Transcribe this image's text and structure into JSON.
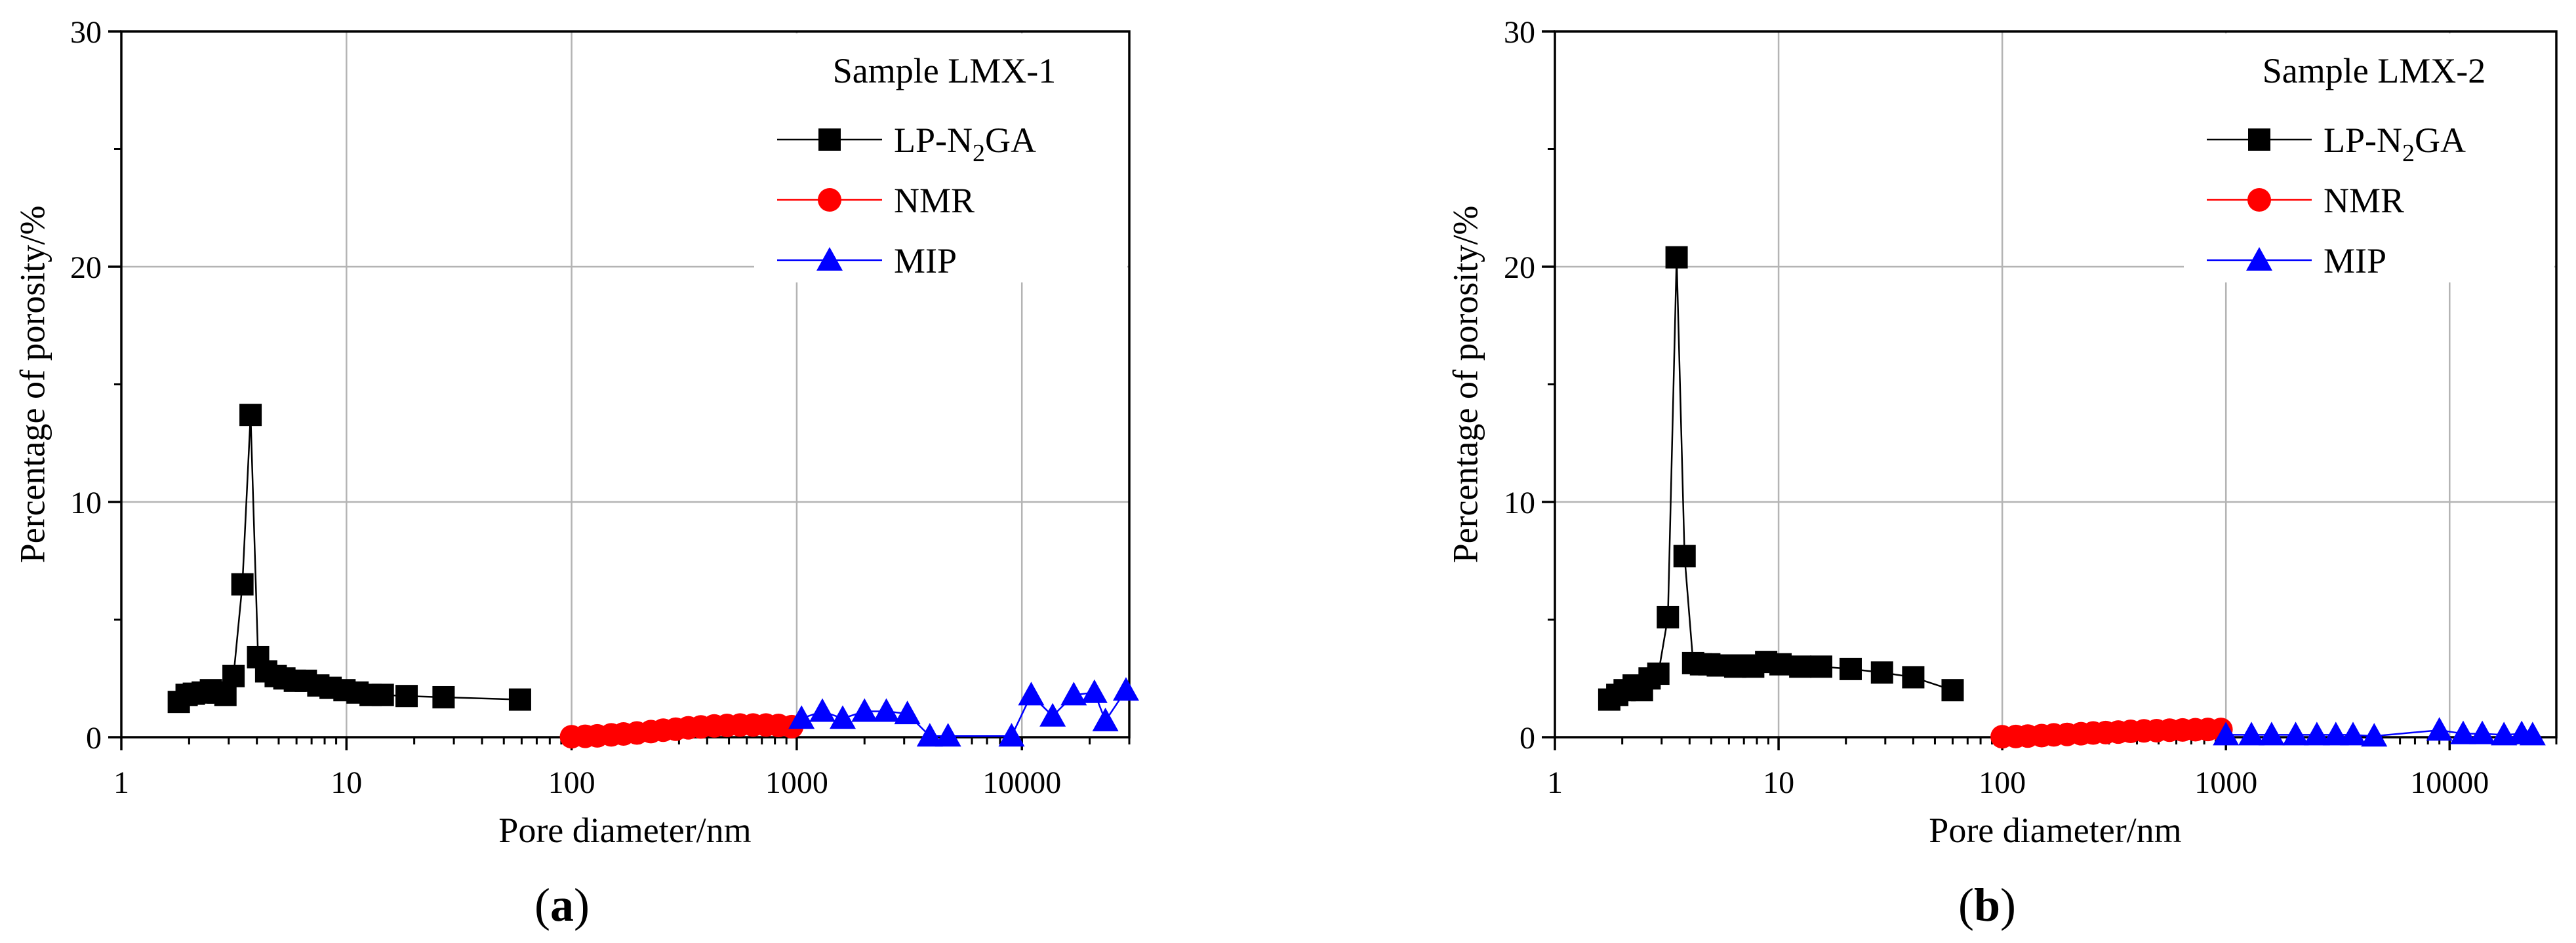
{
  "chart_data": [
    {
      "type": "line",
      "panel_label": "a",
      "xlabel": "Pore diameter/nm",
      "ylabel": "Percentage of porosity/%",
      "xscale": "log",
      "xlim": [
        1,
        30000
      ],
      "ylim": [
        0,
        30
      ],
      "x_ticks": [
        1,
        10,
        100,
        1000,
        10000
      ],
      "x_tick_labels": [
        "1",
        "10",
        "100",
        "1000",
        "10000"
      ],
      "y_ticks": [
        0,
        10,
        20,
        30
      ],
      "y_tick_labels": [
        "0",
        "10",
        "20",
        "30"
      ],
      "grid": true,
      "legend_title": "Sample LMX-1",
      "legend_position": "top-right",
      "series": [
        {
          "name": "LP-N2GA",
          "label_main": "LP-N",
          "label_sub": "2",
          "label_tail": "GA",
          "color": "#000000",
          "marker": "square",
          "x": [
            1.8,
            1.95,
            2.1,
            2.3,
            2.5,
            2.7,
            2.9,
            3.15,
            3.45,
            3.75,
            4.05,
            4.4,
            4.85,
            5.3,
            5.9,
            6.6,
            7.5,
            8.5,
            9.8,
            11.2,
            12.8,
            14.5,
            18.5,
            27,
            59
          ],
          "y": [
            1.5,
            1.8,
            1.85,
            1.9,
            2.0,
            1.9,
            1.8,
            2.6,
            6.5,
            13.7,
            3.4,
            2.8,
            2.6,
            2.5,
            2.4,
            2.4,
            2.2,
            2.1,
            2.0,
            1.9,
            1.8,
            1.8,
            1.75,
            1.7,
            1.6
          ]
        },
        {
          "name": "NMR",
          "color": "#ff0000",
          "marker": "circle",
          "x": [
            100,
            115,
            130,
            150,
            170,
            195,
            225,
            255,
            290,
            330,
            375,
            430,
            490,
            560,
            640,
            730,
            830,
            950
          ],
          "y": [
            0.02,
            0.04,
            0.06,
            0.1,
            0.14,
            0.18,
            0.24,
            0.3,
            0.34,
            0.4,
            0.44,
            0.48,
            0.5,
            0.52,
            0.52,
            0.52,
            0.5,
            0.45
          ]
        },
        {
          "name": "MIP",
          "color": "#0000ff",
          "marker": "triangle",
          "x": [
            1050,
            1300,
            1600,
            2000,
            2500,
            3100,
            3900,
            4700,
            9000,
            11000,
            13700,
            17000,
            21000,
            23500,
            29000
          ],
          "y": [
            0.8,
            1.1,
            0.8,
            1.1,
            1.1,
            1.0,
            0.05,
            0.05,
            0.05,
            1.8,
            0.9,
            1.8,
            1.9,
            0.7,
            2.0
          ]
        }
      ]
    },
    {
      "type": "line",
      "panel_label": "b",
      "xlabel": "Pore diameter/nm",
      "ylabel": "Percentage of porosity/%",
      "xscale": "log",
      "xlim": [
        1,
        30000
      ],
      "ylim": [
        0,
        30
      ],
      "x_ticks": [
        1,
        10,
        100,
        1000,
        10000
      ],
      "x_tick_labels": [
        "1",
        "10",
        "100",
        "1000",
        "10000"
      ],
      "y_ticks": [
        0,
        10,
        20,
        30
      ],
      "y_tick_labels": [
        "0",
        "10",
        "20",
        "30"
      ],
      "grid": true,
      "legend_title": "Sample LMX-2",
      "legend_position": "top-right",
      "series": [
        {
          "name": "LP-N2GA",
          "label_main": "LP-N",
          "label_sub": "2",
          "label_tail": "GA",
          "color": "#000000",
          "marker": "square",
          "x": [
            1.75,
            1.9,
            2.05,
            2.25,
            2.45,
            2.65,
            2.9,
            3.2,
            3.5,
            3.8,
            4.15,
            4.5,
            4.9,
            5.35,
            5.85,
            6.4,
            7.0,
            7.7,
            8.8,
            10.2,
            12.5,
            15.5,
            21,
            29,
            40,
            60
          ],
          "y": [
            1.6,
            1.8,
            2.0,
            2.2,
            2.0,
            2.5,
            2.7,
            5.1,
            20.4,
            7.7,
            3.15,
            3.1,
            3.1,
            3.05,
            3.05,
            3.0,
            3.05,
            3.0,
            3.2,
            3.1,
            3.0,
            3.0,
            2.9,
            2.75,
            2.55,
            2.0
          ]
        },
        {
          "name": "NMR",
          "color": "#ff0000",
          "marker": "circle",
          "x": [
            100,
            115,
            130,
            150,
            170,
            195,
            225,
            255,
            290,
            330,
            375,
            430,
            490,
            560,
            640,
            730,
            830,
            950
          ],
          "y": [
            0.02,
            0.03,
            0.05,
            0.07,
            0.1,
            0.12,
            0.15,
            0.18,
            0.2,
            0.22,
            0.25,
            0.27,
            0.28,
            0.3,
            0.31,
            0.32,
            0.33,
            0.33
          ]
        },
        {
          "name": "MIP",
          "color": "#0000ff",
          "marker": "triangle",
          "x": [
            1000,
            1300,
            1600,
            2050,
            2550,
            3100,
            3700,
            4600,
            9000,
            11500,
            14000,
            17500,
            21000,
            23500
          ],
          "y": [
            0.1,
            0.1,
            0.1,
            0.1,
            0.1,
            0.1,
            0.1,
            0.05,
            0.3,
            0.15,
            0.15,
            0.1,
            0.15,
            0.1
          ]
        }
      ]
    }
  ]
}
